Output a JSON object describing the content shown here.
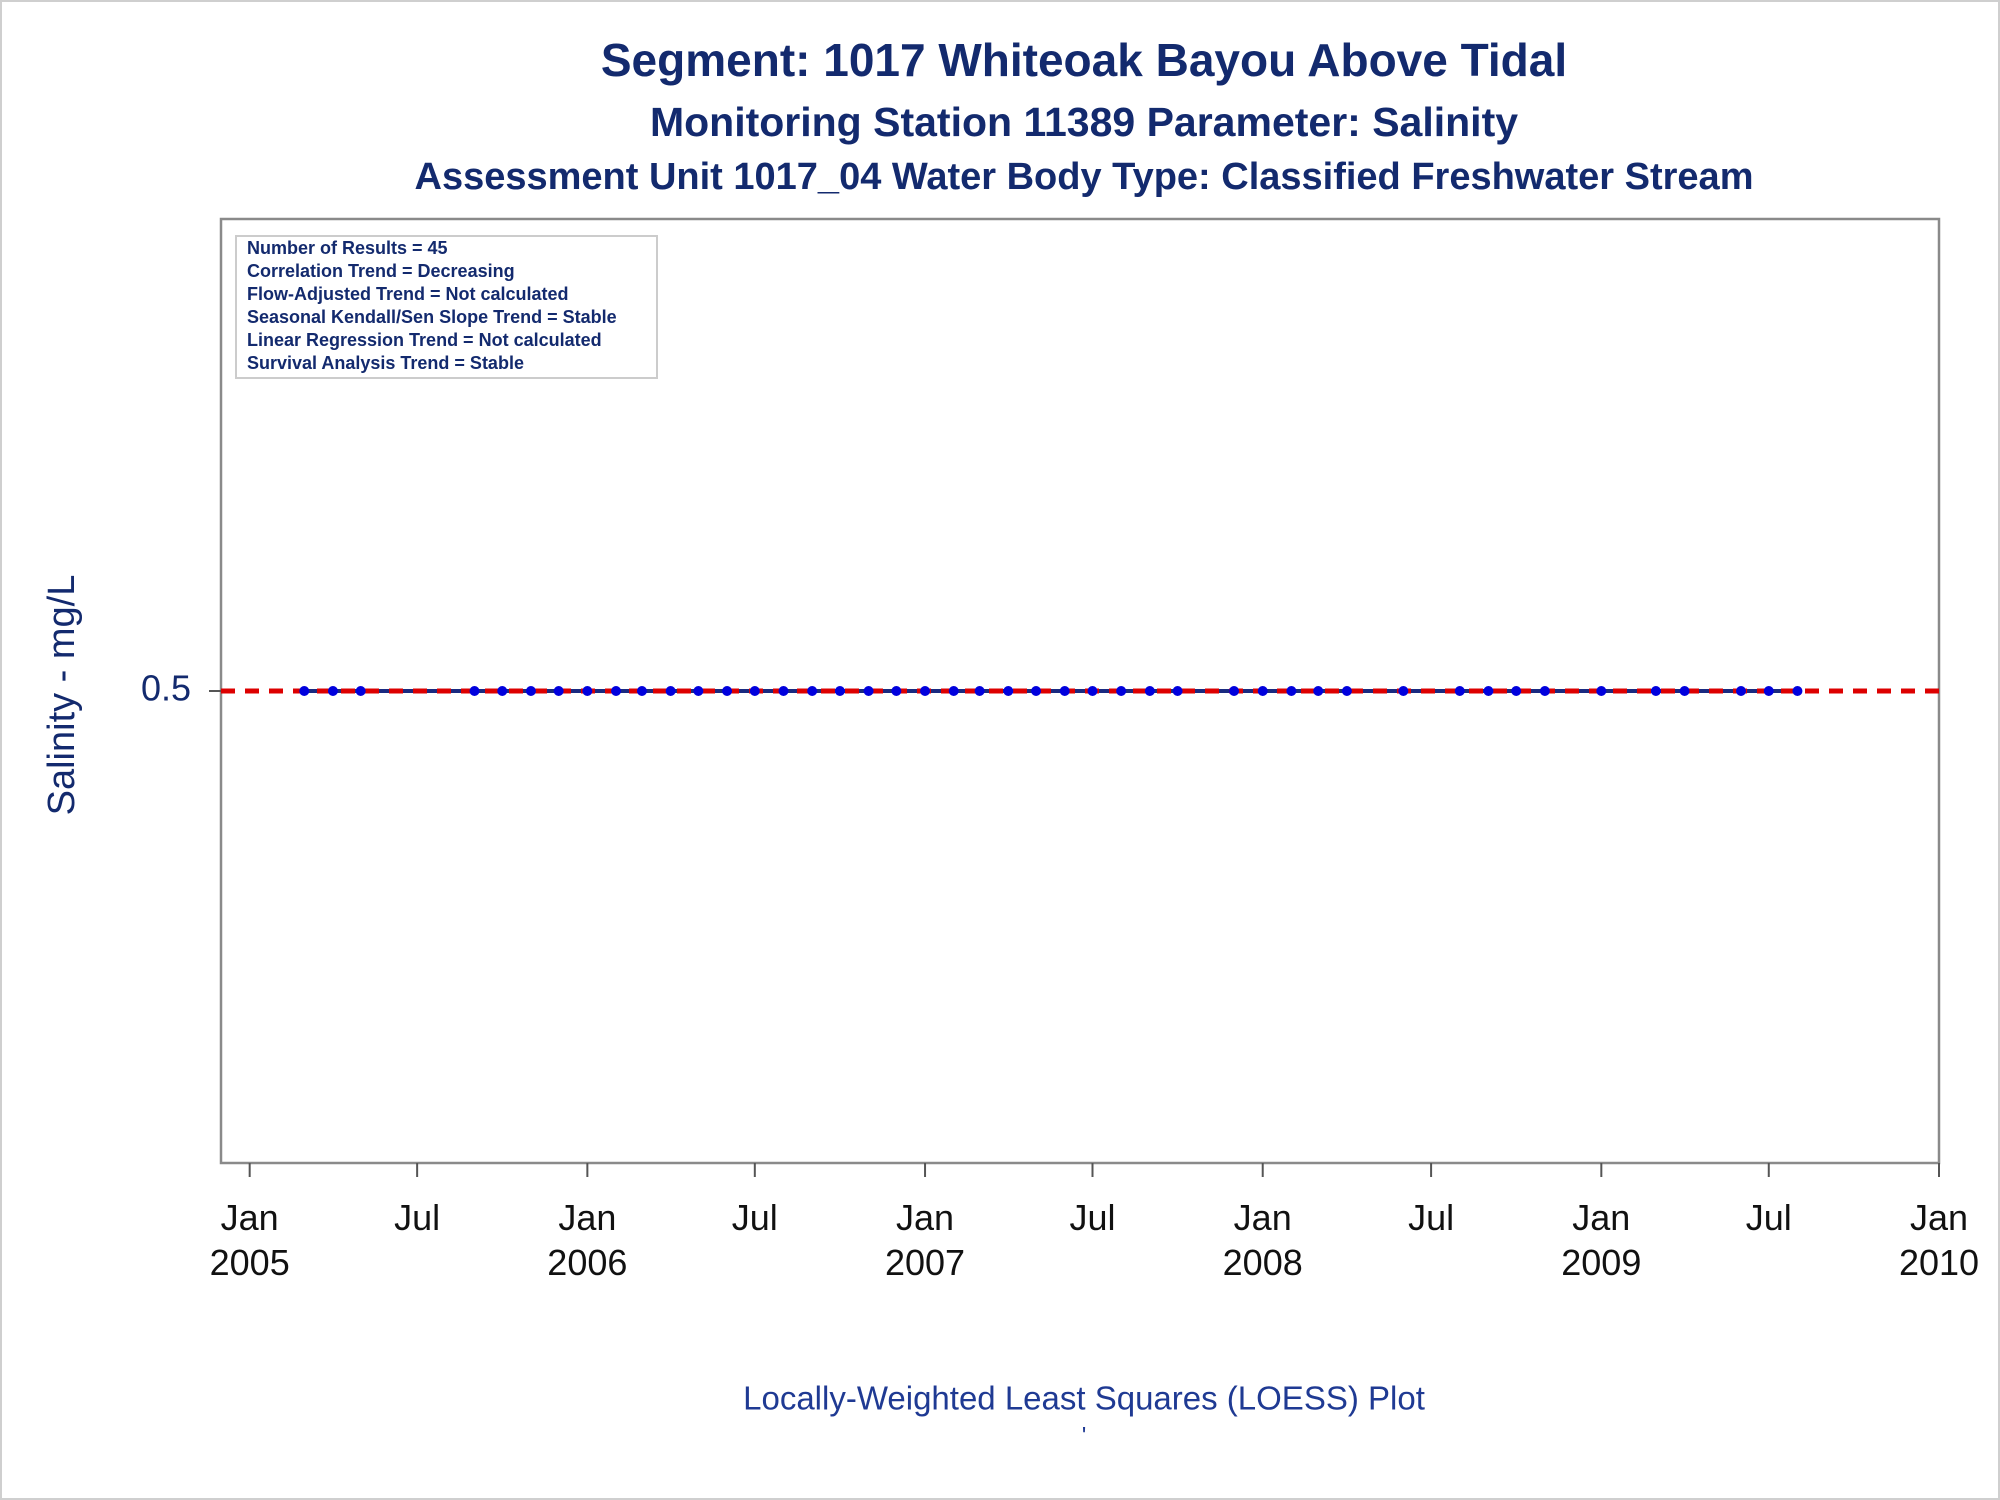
{
  "chart_data": {
    "type": "line",
    "title": "Segment: 1017  Whiteoak Bayou Above Tidal",
    "subtitles": [
      "Monitoring Station 11389 Parameter: Salinity",
      "Assessment Unit 1017_04   Water Body Type: Classified Freshwater Stream"
    ],
    "y_label": "Salinity - mg/L",
    "footer": "Locally-Weighted Least Squares (LOESS) Plot",
    "footnote": "'",
    "annotations": [
      "Number of Results = 45",
      "Correlation Trend = Decreasing",
      "Flow-Adjusted Trend = Not calculated",
      "Seasonal Kendall/Sen Slope Trend = Stable",
      "Linear Regression Trend = Not calculated",
      "Survival Analysis Trend = Stable"
    ],
    "x": [
      "2005-03",
      "2005-04",
      "2005-05",
      "2005-09",
      "2005-10",
      "2005-11",
      "2005-12",
      "2006-01",
      "2006-02",
      "2006-03",
      "2006-04",
      "2006-05",
      "2006-06",
      "2006-07",
      "2006-08",
      "2006-09",
      "2006-10",
      "2006-11",
      "2006-12",
      "2007-01",
      "2007-02",
      "2007-03",
      "2007-04",
      "2007-05",
      "2007-06",
      "2007-07",
      "2007-08",
      "2007-09",
      "2007-10",
      "2007-12",
      "2008-01",
      "2008-02",
      "2008-03",
      "2008-04",
      "2008-06",
      "2008-08",
      "2008-09",
      "2008-10",
      "2008-11",
      "2009-01",
      "2009-03",
      "2009-04",
      "2009-06",
      "2009-07",
      "2009-08"
    ],
    "series": [
      {
        "color": "#0000dd",
        "line_color": "#1a2a80",
        "values": [
          0.5,
          0.5,
          0.5,
          0.5,
          0.5,
          0.5,
          0.5,
          0.5,
          0.5,
          0.5,
          0.5,
          0.5,
          0.5,
          0.5,
          0.5,
          0.5,
          0.5,
          0.5,
          0.5,
          0.5,
          0.5,
          0.5,
          0.5,
          0.5,
          0.5,
          0.5,
          0.5,
          0.5,
          0.5,
          0.5,
          0.5,
          0.5,
          0.5,
          0.5,
          0.5,
          0.5,
          0.5,
          0.5,
          0.5,
          0.5,
          0.5,
          0.5,
          0.5,
          0.5,
          0.5
        ]
      }
    ],
    "reference_line": {
      "value": 0.5,
      "color": "#dd0000",
      "style": "dashed"
    },
    "xlim": [
      "2004-12",
      "2010-01"
    ],
    "xticks": [
      {
        "value": "2005-01",
        "label": "Jan\n2005"
      },
      {
        "value": "2005-07",
        "label": "Jul"
      },
      {
        "value": "2006-01",
        "label": "Jan\n2006"
      },
      {
        "value": "2006-07",
        "label": "Jul"
      },
      {
        "value": "2007-01",
        "label": "Jan\n2007"
      },
      {
        "value": "2007-07",
        "label": "Jul"
      },
      {
        "value": "2008-01",
        "label": "Jan\n2008"
      },
      {
        "value": "2008-07",
        "label": "Jul"
      },
      {
        "value": "2009-01",
        "label": "Jan\n2009"
      },
      {
        "value": "2009-07",
        "label": "Jul"
      },
      {
        "value": "2010-01",
        "label": "Jan\n2010"
      }
    ],
    "ylim": [
      0,
      1
    ],
    "yticks": [
      0.5
    ]
  }
}
